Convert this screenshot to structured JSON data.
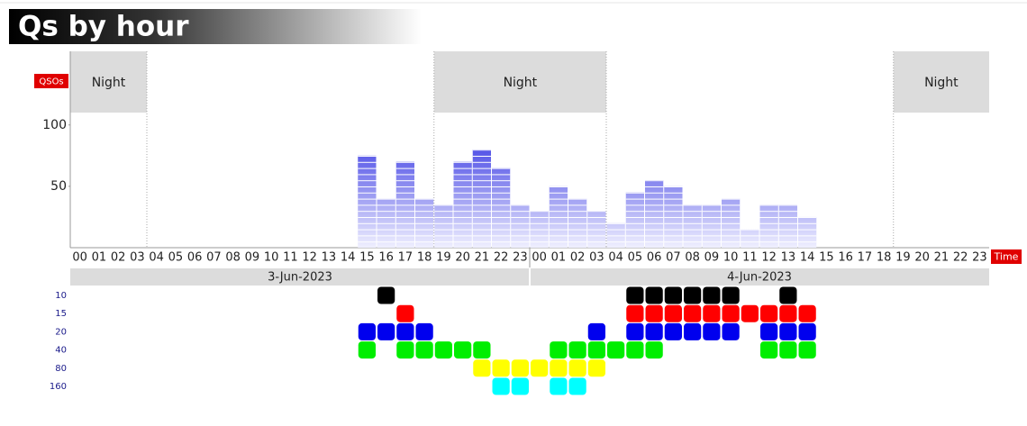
{
  "chart_data": {
    "type": "bar",
    "title": "Qs by hour",
    "y_label": "QSOs",
    "x_label": "Time",
    "categories": [
      "00",
      "01",
      "02",
      "03",
      "04",
      "05",
      "06",
      "07",
      "08",
      "09",
      "10",
      "11",
      "12",
      "13",
      "14",
      "15",
      "16",
      "17",
      "18",
      "19",
      "20",
      "21",
      "22",
      "23",
      "00",
      "01",
      "02",
      "03",
      "04",
      "05",
      "06",
      "07",
      "08",
      "09",
      "10",
      "11",
      "12",
      "13",
      "14",
      "15",
      "16",
      "17",
      "18",
      "19",
      "20",
      "21",
      "22",
      "23"
    ],
    "dates": [
      "3-Jun-2023",
      "4-Jun-2023"
    ],
    "values": [
      0,
      0,
      0,
      0,
      0,
      0,
      0,
      0,
      0,
      0,
      0,
      0,
      0,
      0,
      0,
      75,
      40,
      70,
      40,
      35,
      70,
      80,
      65,
      35,
      30,
      50,
      40,
      30,
      20,
      45,
      55,
      50,
      35,
      35,
      40,
      15,
      35,
      35,
      25,
      0,
      0,
      0,
      0,
      0,
      0,
      0,
      0,
      0
    ],
    "ylim": [
      0,
      160
    ],
    "yticks": [
      50,
      100
    ],
    "nights": [
      {
        "label": "Night",
        "start": 0,
        "end": 4
      },
      {
        "label": "Night",
        "start": 19,
        "end": 28
      },
      {
        "label": "Night",
        "start": 43,
        "end": 48
      }
    ],
    "bands": [
      {
        "label": "10",
        "color": "#000000",
        "hours": [
          16,
          29,
          30,
          31,
          32,
          33,
          34,
          37
        ]
      },
      {
        "label": "15",
        "color": "#ff0000",
        "hours": [
          17,
          29,
          30,
          31,
          32,
          33,
          34,
          35,
          36,
          37,
          38
        ]
      },
      {
        "label": "20",
        "color": "#0000ee",
        "hours": [
          15,
          16,
          17,
          18,
          27,
          29,
          30,
          31,
          32,
          33,
          34,
          36,
          37,
          38
        ]
      },
      {
        "label": "40",
        "color": "#00ee00",
        "hours": [
          15,
          17,
          18,
          19,
          20,
          21,
          25,
          26,
          27,
          28,
          29,
          30,
          36,
          37,
          38
        ]
      },
      {
        "label": "80",
        "color": "#ffff00",
        "hours": [
          21,
          22,
          23,
          24,
          25,
          26,
          27
        ]
      },
      {
        "label": "160",
        "color": "#00ffff",
        "hours": [
          22,
          23,
          25,
          26
        ]
      }
    ]
  }
}
